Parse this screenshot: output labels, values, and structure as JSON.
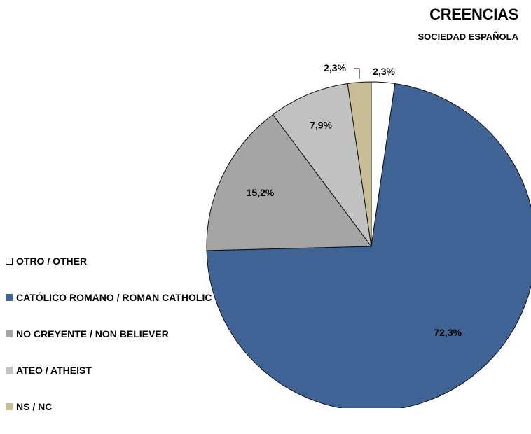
{
  "chart_data": {
    "type": "pie",
    "title": "CREENCIAS",
    "subtitle": "SOCIEDAD ESPAÑOLA",
    "legend_position": "left",
    "series": [
      {
        "name": "OTRO / OTHER",
        "value": 2.3,
        "label": "2,3%",
        "color": "#ffffff"
      },
      {
        "name": "CATÓLICO ROMANO / ROMAN CATHOLIC",
        "value": 72.3,
        "label": "72,3%",
        "color": "#3e6394"
      },
      {
        "name": "NO CREYENTE / NON BELIEVER",
        "value": 15.2,
        "label": "15,2%",
        "color": "#a5a5a5"
      },
      {
        "name": "ATEO / ATHEIST",
        "value": 7.9,
        "label": "7,9%",
        "color": "#c1c1c1"
      },
      {
        "name": "NS / NC",
        "value": 2.3,
        "label": "2,3%",
        "color": "#c8bd95"
      }
    ]
  }
}
